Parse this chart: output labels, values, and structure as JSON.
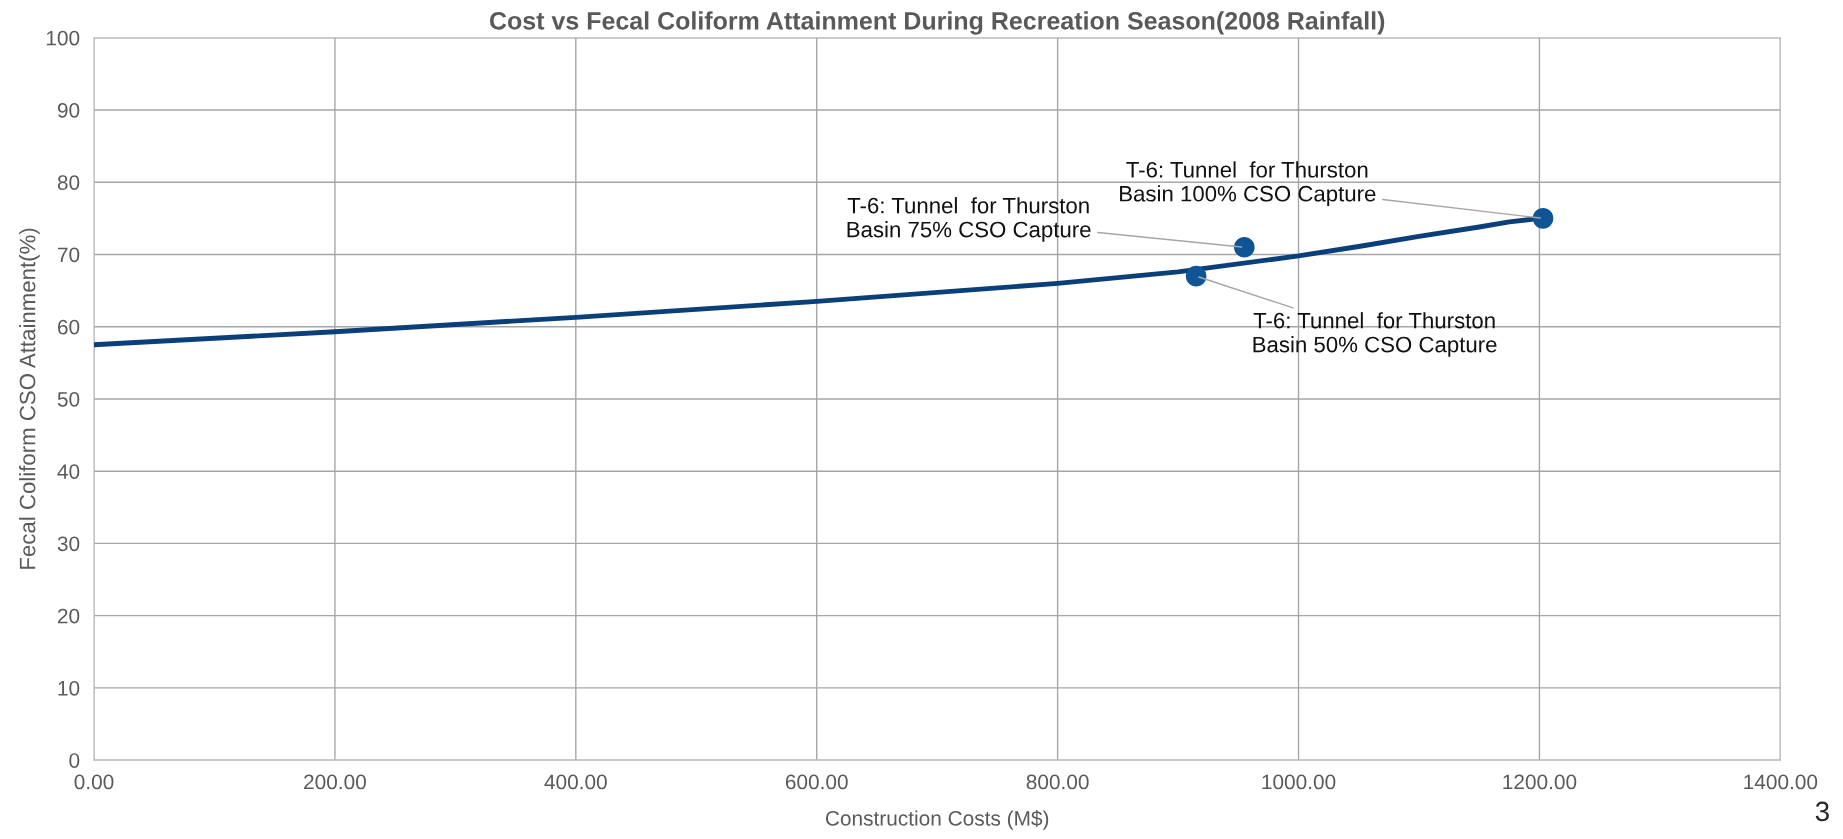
{
  "chart_data": {
    "type": "scatter",
    "title": "Cost vs Fecal Coliform Attainment During Recreation Season(2008 Rainfall)",
    "xlabel": "Construction Costs (M$)",
    "ylabel": "Fecal Coliform CSO Attainment(%)",
    "series": [
      {
        "type": "line",
        "color": "#0b3f7a",
        "marker": "none",
        "x": [
          0,
          200,
          400,
          600,
          800,
          900,
          1000,
          1050,
          1100,
          1150,
          1175,
          1200
        ],
        "values": [
          57.5,
          59.3,
          61.3,
          63.5,
          66,
          67.6,
          69.8,
          71.1,
          72.5,
          73.8,
          74.5,
          75
        ]
      },
      {
        "color": "#0f5596",
        "marker": "circle",
        "x": [
          915,
          955,
          1203
        ],
        "values": [
          67,
          71,
          75
        ]
      }
    ],
    "annotations": [
      {
        "text": "T-6: Tunnel  for Thurston\nBasin 50% CSO Capture",
        "x": 915,
        "y": 67
      },
      {
        "text": "T-6: Tunnel  for Thurston\nBasin 75% CSO Capture",
        "x": 955,
        "y": 71
      },
      {
        "text": "T-6: Tunnel  for Thurston\nBasin 100% CSO Capture",
        "x": 1203,
        "y": 75
      },
      "3"
    ],
    "xlim": [
      0,
      1400
    ],
    "xticks": [
      {
        "value": 0,
        "label": "0.00"
      },
      {
        "value": 200,
        "label": "200.00"
      },
      {
        "value": 400,
        "label": "400.00"
      },
      {
        "value": 600,
        "label": "600.00"
      },
      {
        "value": 800,
        "label": "800.00"
      },
      {
        "value": 1000,
        "label": "1000.00"
      },
      {
        "value": 1200,
        "label": "1200.00"
      },
      {
        "value": 1400,
        "label": "1400.00"
      }
    ],
    "ylim": [
      0,
      100
    ],
    "yticks": [
      0,
      10,
      20,
      30,
      40,
      50,
      60,
      70,
      80,
      90,
      100
    ],
    "grid": true,
    "legend": false
  }
}
